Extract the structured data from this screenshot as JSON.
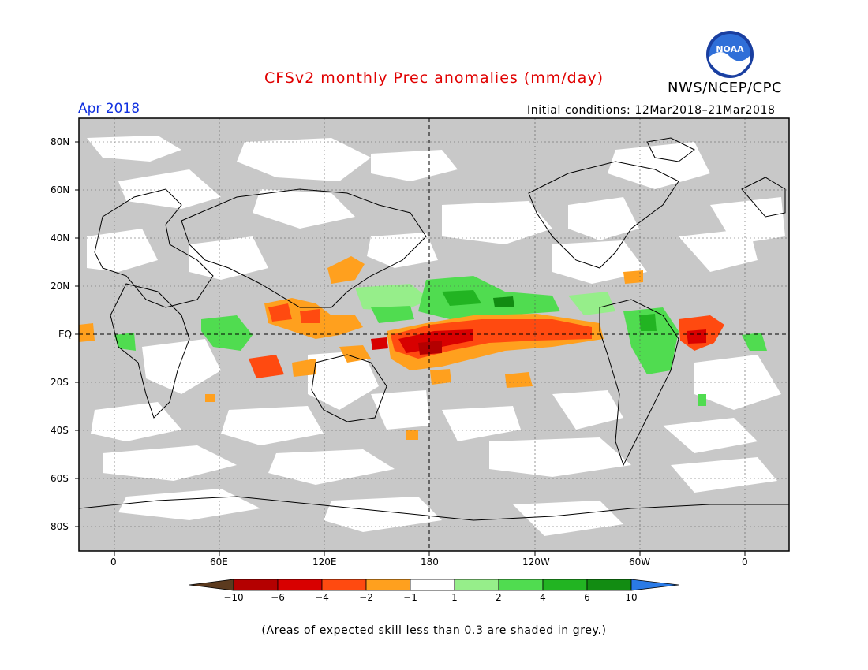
{
  "header": {
    "title": "CFSv2 monthly Prec anomalies (mm/day)",
    "agency": "NWS/NCEP/CPC",
    "logo_text": "NOAA",
    "target_month": "Apr 2018",
    "initial_conditions": "Initial conditions: 12Mar2018–21Mar2018"
  },
  "axes": {
    "lat_labels": [
      "80N",
      "60N",
      "40N",
      "20N",
      "EQ",
      "20S",
      "40S",
      "60S",
      "80S"
    ],
    "lon_labels": [
      "0",
      "60E",
      "120E",
      "180",
      "120W",
      "60W",
      "0"
    ]
  },
  "colorbar": {
    "tick_labels": [
      "−10",
      "−6",
      "−4",
      "−2",
      "−1",
      "1",
      "2",
      "4",
      "6",
      "10"
    ],
    "colors": [
      "#5b3a1e",
      "#b40000",
      "#d80000",
      "#ff4a10",
      "#ffa01e",
      "#ffffff",
      "#96ee8a",
      "#50dc50",
      "#22b422",
      "#128c12",
      "#2a7ae6"
    ]
  },
  "legend_note": "(Areas of expected skill less than 0.3 are shaded in grey.)",
  "map_colors": {
    "grey": "#c8c8c8",
    "orange": "#ffa01e",
    "red_orange": "#ff4a10",
    "red": "#d80000",
    "light_green": "#96ee8a",
    "green": "#50dc50",
    "dark_green": "#128c12"
  }
}
